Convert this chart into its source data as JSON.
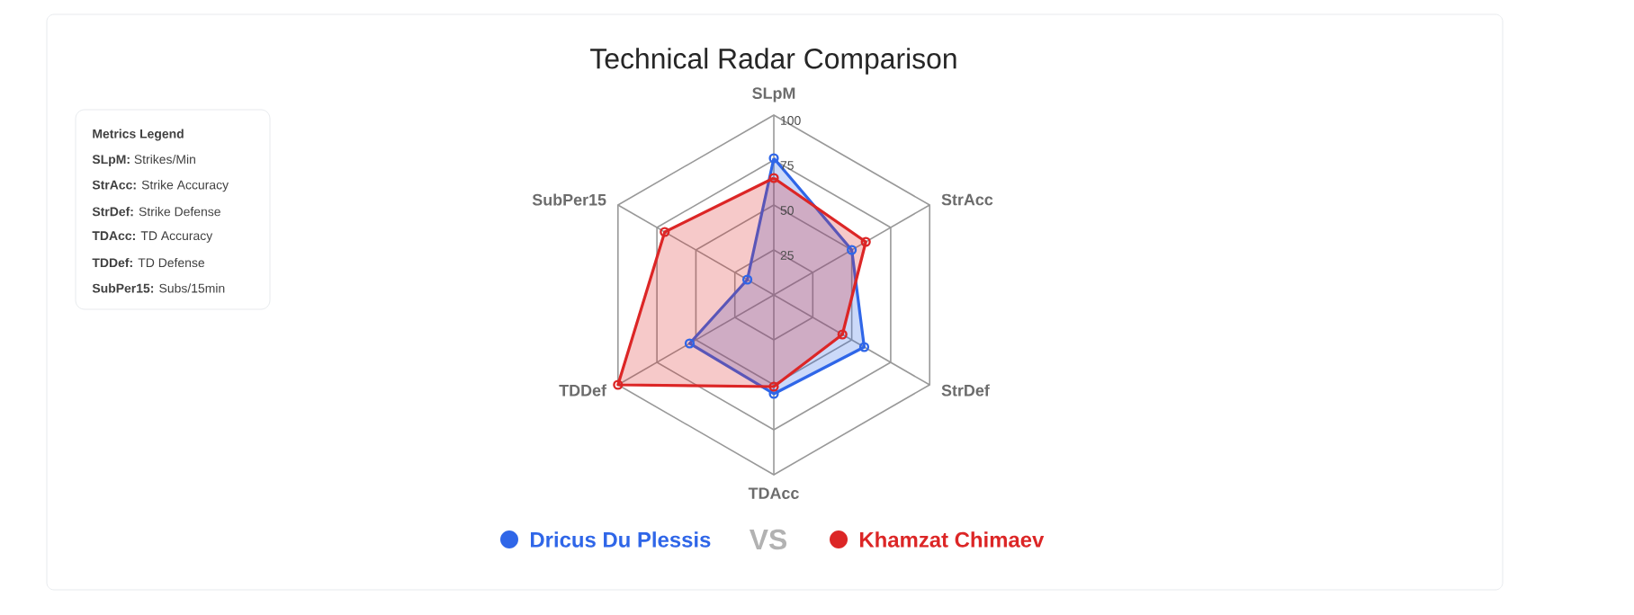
{
  "chart_data": {
    "type": "radar",
    "title": "Technical Radar Comparison",
    "categories": [
      "SLpM",
      "StrAcc",
      "StrDef",
      "TDAcc",
      "TDDef",
      "SubPer15"
    ],
    "series": [
      {
        "name": "Dricus Du Plessis",
        "color": "#2f66e8",
        "values": [
          76,
          50,
          58,
          55,
          54,
          17
        ]
      },
      {
        "name": "Khamzat Chimaev",
        "color": "#dc2626",
        "values": [
          65,
          59,
          44,
          51,
          100,
          70
        ]
      }
    ],
    "ylim": [
      0,
      100
    ],
    "yticks": [
      25,
      50,
      75,
      100
    ],
    "grid": true,
    "legend": "bottom",
    "marker": "circle",
    "annotations": [
      "Metrics Legend",
      "**SLpM:** Strikes/Min",
      "**StrAcc:** Strike Accuracy",
      "**StrDef:** Strike Defense",
      "**TDAcc:** TD Accuracy",
      "**TDDef:** TD Defense",
      "**SubPer15:** Subs/15min",
      "VS"
    ]
  }
}
